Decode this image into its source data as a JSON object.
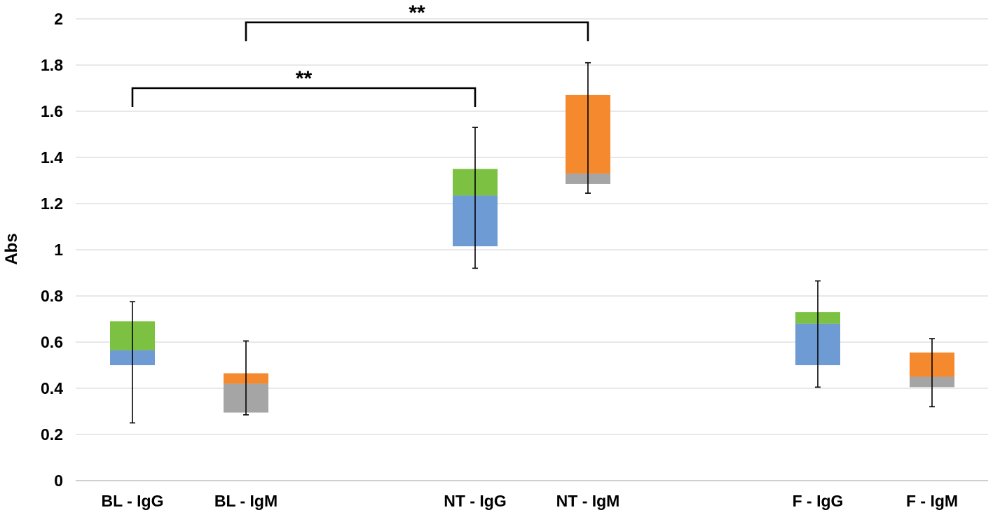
{
  "chart_data": {
    "type": "box",
    "title": "",
    "xlabel": "",
    "ylabel": "Abs",
    "ylim": [
      0,
      2
    ],
    "yticks": [
      0,
      0.2,
      0.4,
      0.6,
      0.8,
      1,
      1.2,
      1.4,
      1.6,
      1.8,
      2
    ],
    "ytick_labels": [
      "0",
      "0.2",
      "0.4",
      "0.6",
      "0.8",
      "1",
      "1.2",
      "1.4",
      "1.6",
      "1.8",
      "2"
    ],
    "grid": true,
    "categories": [
      "BL - IgG",
      "BL - IgM",
      "NT - IgG",
      "NT - IgM",
      "F - IgG",
      "F - IgM"
    ],
    "series": [
      {
        "name": "BL - IgG",
        "min": 0.25,
        "q1": 0.5,
        "median": 0.565,
        "q3": 0.69,
        "max": 0.775,
        "lower_color": "#6e9bd4",
        "upper_color": "#7dc142"
      },
      {
        "name": "BL - IgM",
        "min": 0.285,
        "q1": 0.295,
        "median": 0.42,
        "q3": 0.465,
        "max": 0.605,
        "lower_color": "#a5a5a5",
        "upper_color": "#f5892e"
      },
      {
        "name": "NT - IgG",
        "min": 0.92,
        "q1": 1.015,
        "median": 1.235,
        "q3": 1.35,
        "max": 1.53,
        "lower_color": "#6e9bd4",
        "upper_color": "#7dc142"
      },
      {
        "name": "NT - IgM",
        "min": 1.245,
        "q1": 1.285,
        "median": 1.33,
        "q3": 1.67,
        "max": 1.81,
        "lower_color": "#a5a5a5",
        "upper_color": "#f5892e"
      },
      {
        "name": "F - IgG",
        "min": 0.405,
        "q1": 0.5,
        "median": 0.68,
        "q3": 0.73,
        "max": 0.865,
        "lower_color": "#6e9bd4",
        "upper_color": "#7dc142"
      },
      {
        "name": "F - IgM",
        "min": 0.32,
        "q1": 0.405,
        "median": 0.45,
        "q3": 0.555,
        "max": 0.615,
        "lower_color": "#a5a5a5",
        "upper_color": "#f5892e"
      }
    ],
    "annotations": [
      {
        "label": "**",
        "from": "BL - IgG",
        "to": "NT - IgG",
        "y": 1.7
      },
      {
        "label": "**",
        "from": "BL - IgM",
        "to": "NT - IgM",
        "y": 1.985
      }
    ]
  }
}
